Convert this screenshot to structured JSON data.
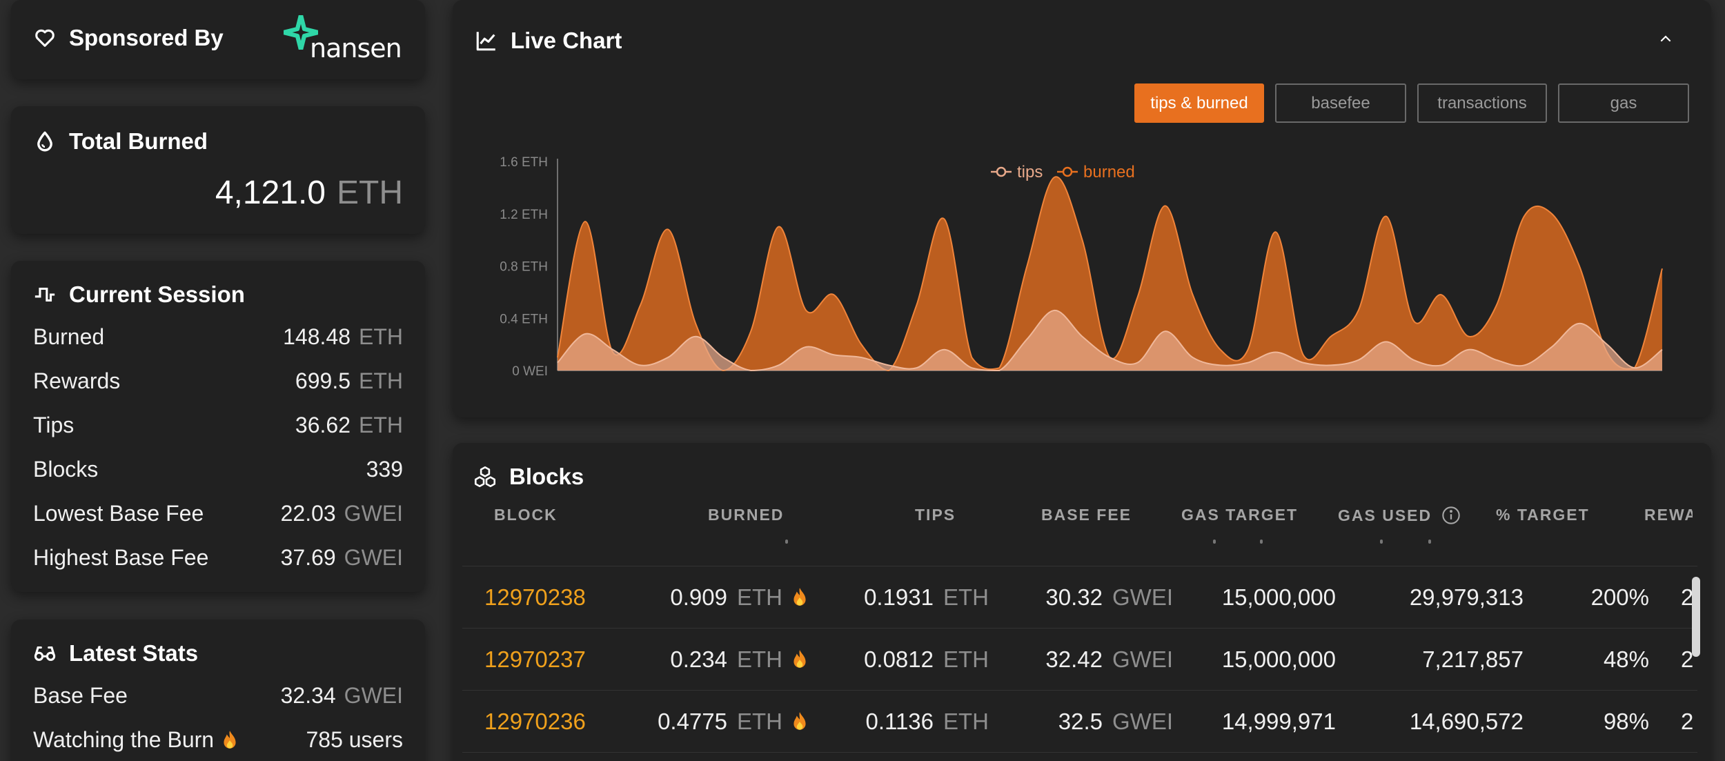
{
  "sponsor": {
    "title": "Sponsored By",
    "logo_text": "nansen"
  },
  "total_burned": {
    "title": "Total Burned",
    "value": "4,121.0",
    "unit": "ETH"
  },
  "current_session": {
    "title": "Current Session",
    "rows": [
      {
        "label": "Burned",
        "value": "148.48",
        "unit": "ETH"
      },
      {
        "label": "Rewards",
        "value": "699.5",
        "unit": "ETH"
      },
      {
        "label": "Tips",
        "value": "36.62",
        "unit": "ETH"
      },
      {
        "label": "Blocks",
        "value": "339",
        "unit": ""
      },
      {
        "label": "Lowest Base Fee",
        "value": "22.03",
        "unit": "GWEI"
      },
      {
        "label": "Highest Base Fee",
        "value": "37.69",
        "unit": "GWEI"
      }
    ]
  },
  "latest_stats": {
    "title": "Latest Stats",
    "rows": [
      {
        "label": "Base Fee",
        "value": "32.34",
        "unit": "GWEI"
      },
      {
        "label": "Watching the Burn",
        "value": "785 users",
        "unit": ""
      }
    ]
  },
  "live_chart": {
    "title": "Live Chart",
    "tabs": [
      {
        "label": "tips & burned",
        "active": true
      },
      {
        "label": "basefee",
        "active": false
      },
      {
        "label": "transactions",
        "active": false
      },
      {
        "label": "gas",
        "active": false
      }
    ]
  },
  "chart_data": {
    "type": "area",
    "title": "",
    "xlabel": "",
    "ylabel": "",
    "y_ticks": [
      "0 WEI",
      "0.4 ETH",
      "0.8 ETH",
      "1.2 ETH",
      "1.6 ETH"
    ],
    "ylim": [
      0,
      1.6
    ],
    "legend": {
      "placement": "top-center"
    },
    "grid": false,
    "series": [
      {
        "name": "tips",
        "color": "#e8a98a",
        "values": [
          0.06,
          0.28,
          0.16,
          0.04,
          0.1,
          0.26,
          0.1,
          0.0,
          0.04,
          0.18,
          0.12,
          0.1,
          0.04,
          0.02,
          0.16,
          0.02,
          0.0,
          0.24,
          0.46,
          0.26,
          0.1,
          0.06,
          0.3,
          0.1,
          0.04,
          0.06,
          0.14,
          0.06,
          0.04,
          0.08,
          0.22,
          0.08,
          0.04,
          0.16,
          0.08,
          0.04,
          0.18,
          0.36,
          0.2,
          0.02,
          0.16
        ]
      },
      {
        "name": "burned",
        "color": "#e8701f",
        "values": [
          0.1,
          1.14,
          0.14,
          0.5,
          1.08,
          0.36,
          0.0,
          0.3,
          1.1,
          0.46,
          0.58,
          0.2,
          0.0,
          0.5,
          1.16,
          0.1,
          0.02,
          0.8,
          1.48,
          1.0,
          0.1,
          0.56,
          1.26,
          0.58,
          0.16,
          0.16,
          1.06,
          0.12,
          0.26,
          0.46,
          1.18,
          0.38,
          0.58,
          0.26,
          0.5,
          1.18,
          1.2,
          0.8,
          0.14,
          0.02,
          0.78
        ]
      }
    ]
  },
  "blocks": {
    "title": "Blocks",
    "columns": [
      "BLOCK",
      "BURNED",
      "TIPS",
      "BASE FEE",
      "GAS TARGET",
      "GAS USED",
      "% TARGET",
      "REWA"
    ],
    "rows": [
      {
        "block": "12970238",
        "burned": "0.909",
        "burned_unit": "ETH",
        "tips": "0.1931",
        "tips_unit": "ETH",
        "base_fee": "30.32",
        "base_fee_unit": "GWEI",
        "gas_target": "15,000,000",
        "gas_used": "29,979,313",
        "pct_target": "200%",
        "reward": "2"
      },
      {
        "block": "12970237",
        "burned": "0.234",
        "burned_unit": "ETH",
        "tips": "0.0812",
        "tips_unit": "ETH",
        "base_fee": "32.42",
        "base_fee_unit": "GWEI",
        "gas_target": "15,000,000",
        "gas_used": "7,217,857",
        "pct_target": "48%",
        "reward": "2"
      },
      {
        "block": "12970236",
        "burned": "0.4775",
        "burned_unit": "ETH",
        "tips": "0.1136",
        "tips_unit": "ETH",
        "base_fee": "32.5",
        "base_fee_unit": "GWEI",
        "gas_target": "14,999,971",
        "gas_used": "14,690,572",
        "pct_target": "98%",
        "reward": "2"
      }
    ]
  },
  "colors": {
    "accent": "#e8701f",
    "block_link": "#f0a11c",
    "nansen": "#2fd7a8",
    "card_bg": "#212121",
    "page_bg": "#2c2c2c"
  }
}
